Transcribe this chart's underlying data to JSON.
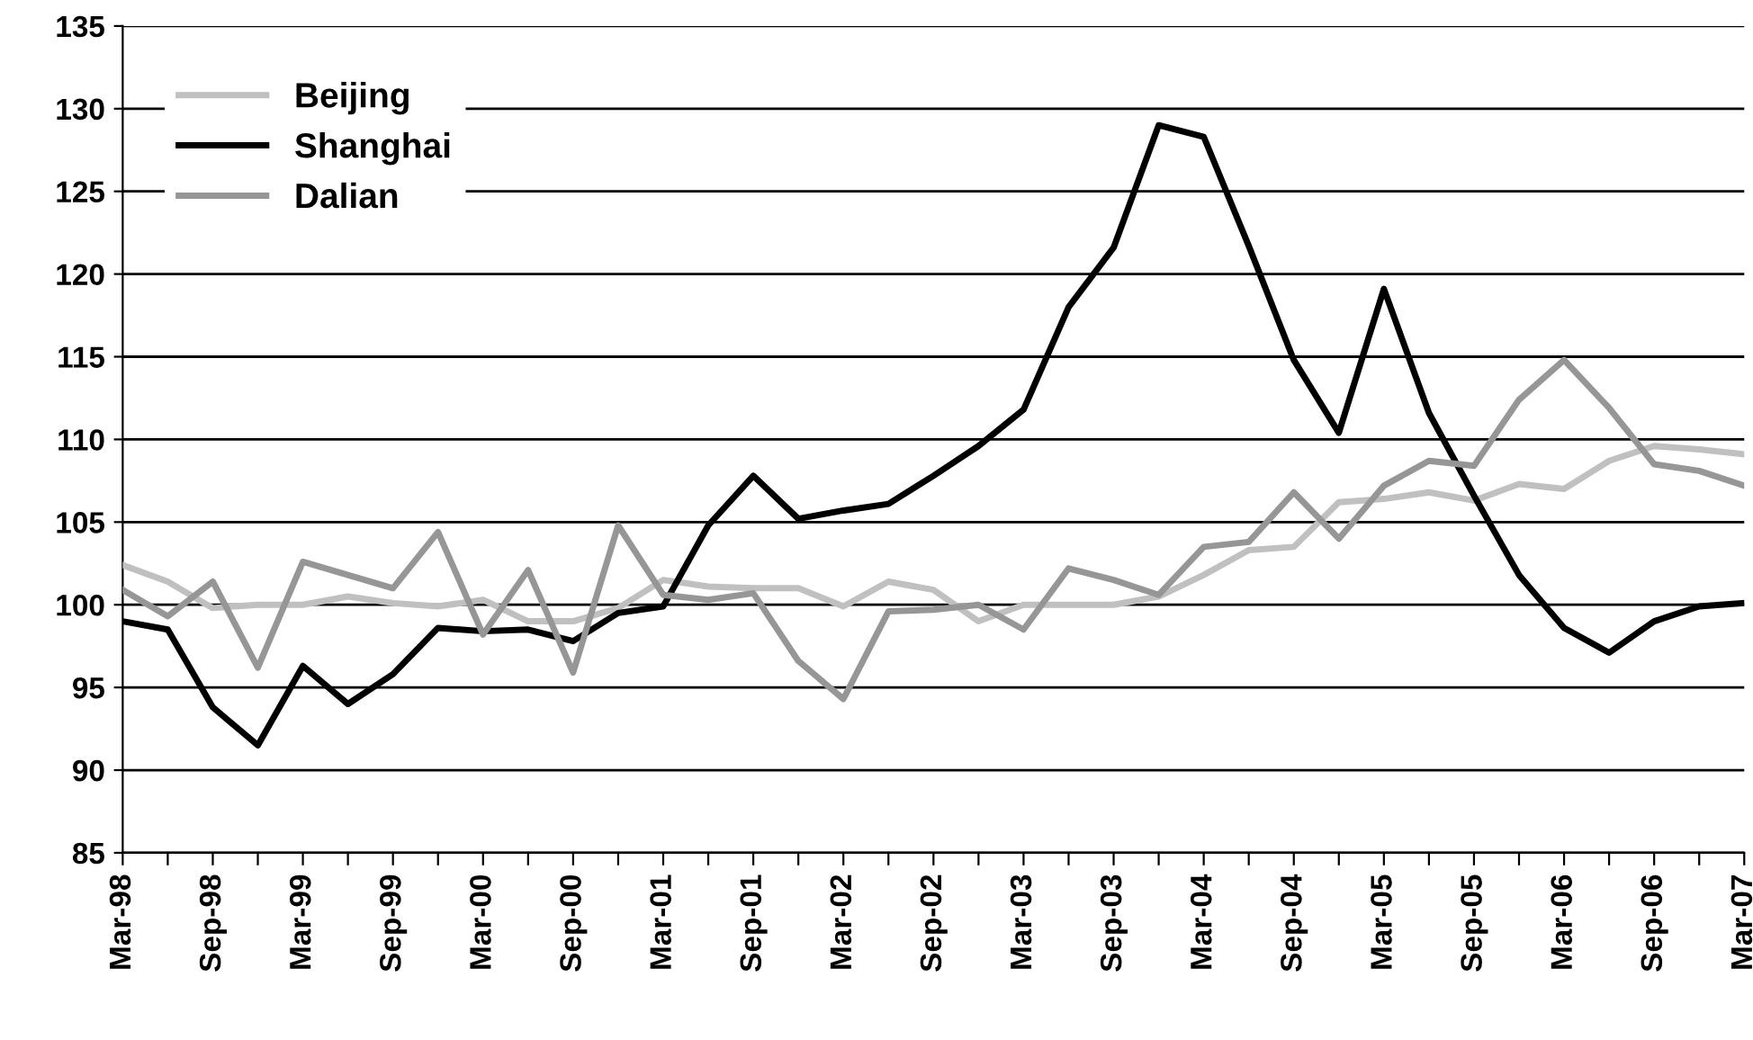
{
  "chart_data": {
    "type": "line",
    "categories": [
      "Mar-98",
      null,
      "Sep-98",
      null,
      "Mar-99",
      null,
      "Sep-99",
      null,
      "Mar-00",
      null,
      "Sep-00",
      null,
      "Mar-01",
      null,
      "Sep-01",
      null,
      "Mar-02",
      null,
      "Sep-02",
      null,
      "Mar-03",
      null,
      "Sep-03",
      null,
      "Mar-04",
      null,
      "Sep-04",
      null,
      "Mar-05",
      null,
      "Sep-05",
      null,
      "Mar-06",
      null,
      "Sep-06",
      null,
      "Mar-07"
    ],
    "series": [
      {
        "name": "Beijing",
        "color": "#c0c0c0",
        "values": [
          102.4,
          101.4,
          99.8,
          100,
          100,
          100.5,
          100.1,
          99.9,
          100.3,
          99,
          99,
          99.8,
          101.5,
          101.1,
          101,
          101,
          99.9,
          101.4,
          100.9,
          99,
          100,
          100,
          100,
          100.5,
          101.8,
          103.3,
          103.5,
          106.2,
          106.4,
          106.8,
          106.3,
          107.3,
          107,
          108.7,
          109.6,
          109.4,
          109.1
        ]
      },
      {
        "name": "Shanghai",
        "color": "#000000",
        "values": [
          99,
          98.5,
          93.8,
          91.5,
          96.3,
          94,
          95.8,
          98.6,
          98.4,
          98.5,
          97.8,
          99.5,
          99.9,
          104.8,
          107.8,
          105.2,
          105.7,
          106.1,
          107.8,
          109.6,
          111.8,
          118,
          121.6,
          129,
          128.3,
          121.7,
          114.8,
          110.4,
          119.1,
          111.6,
          106.6,
          101.8,
          98.6,
          97.1,
          99,
          99.9,
          100.1
        ]
      },
      {
        "name": "Dalian",
        "color": "#969696",
        "values": [
          100.9,
          99.3,
          101.4,
          96.2,
          102.6,
          101.8,
          101,
          104.4,
          98.2,
          102.1,
          95.9,
          104.8,
          100.6,
          100.3,
          100.7,
          96.6,
          94.3,
          99.6,
          99.7,
          100,
          98.5,
          102.2,
          101.5,
          100.6,
          103.5,
          103.8,
          106.8,
          104,
          107.2,
          108.7,
          108.4,
          112.4,
          114.8,
          111.9,
          108.5,
          108.1,
          107.2
        ]
      }
    ],
    "ylim": [
      85,
      135
    ],
    "yticks": [
      85,
      90,
      95,
      100,
      105,
      110,
      115,
      120,
      125,
      130,
      135
    ],
    "grid": "y",
    "legend": "top left",
    "line_style": "solid",
    "marker": "none"
  }
}
